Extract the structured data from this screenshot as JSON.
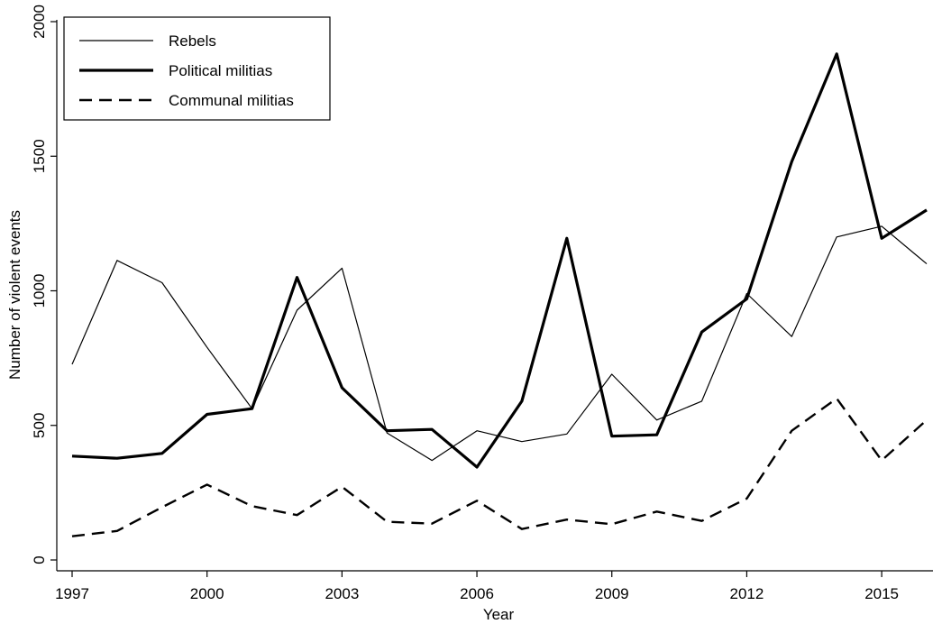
{
  "chart_data": {
    "type": "line",
    "title": "",
    "xlabel": "Year",
    "ylabel": "Number of violent events",
    "xlim": [
      1997,
      2016
    ],
    "ylim": [
      0,
      2000
    ],
    "x_ticks": [
      1997,
      2000,
      2003,
      2006,
      2009,
      2012,
      2015
    ],
    "y_ticks": [
      0,
      500,
      1000,
      1500,
      2000
    ],
    "grid": false,
    "legend_position": "top-left",
    "x": [
      1997,
      1998,
      1999,
      2000,
      2001,
      2002,
      2003,
      2004,
      2005,
      2006,
      2007,
      2008,
      2009,
      2010,
      2011,
      2012,
      2013,
      2014,
      2015,
      2016
    ],
    "series": [
      {
        "name": "Rebels",
        "style": "thin-solid",
        "color": "#000000",
        "values": [
          727,
          1113,
          1030,
          790,
          562,
          928,
          1084,
          472,
          370,
          480,
          440,
          468,
          690,
          520,
          590,
          990,
          830,
          1200,
          1240,
          1100
        ]
      },
      {
        "name": "Political militias",
        "style": "thick-solid",
        "color": "#000000",
        "values": [
          386,
          378,
          396,
          541,
          562,
          1050,
          640,
          480,
          485,
          345,
          590,
          1195,
          460,
          465,
          847,
          970,
          1480,
          1880,
          1195,
          1300
        ]
      },
      {
        "name": "Communal militias",
        "style": "dashed",
        "color": "#000000",
        "values": [
          88,
          108,
          196,
          280,
          200,
          167,
          272,
          142,
          135,
          220,
          115,
          150,
          133,
          180,
          145,
          228,
          480,
          600,
          370,
          520
        ]
      }
    ]
  }
}
